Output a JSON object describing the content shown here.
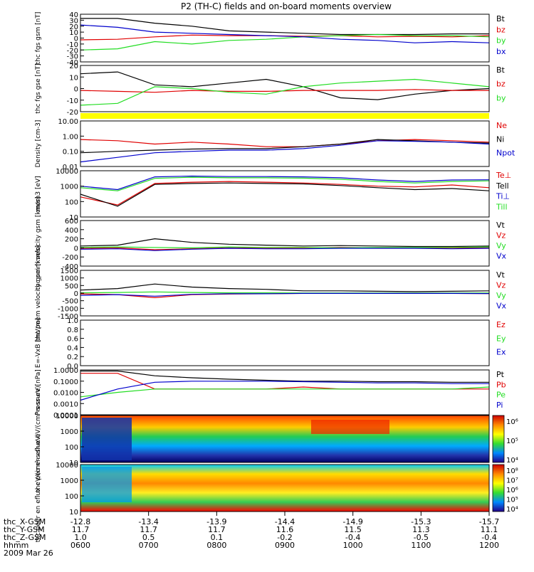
{
  "title": "P2 (TH-C) fields and on-board moments overview",
  "colors": {
    "black": "#000000",
    "red": "#e00000",
    "green": "#22dd22",
    "blue": "#0000cc",
    "yellow": "#ffff00"
  },
  "chart_data": [
    {
      "type": "line",
      "ylabel": "thc fgs gsm [nT]",
      "ylim": [
        -40,
        40
      ],
      "ticks": [
        "40",
        "30",
        "20",
        "10",
        "0",
        "-10",
        "-20",
        "-30",
        "-40"
      ],
      "series": [
        {
          "name": "Bt",
          "color": "black",
          "values": [
            33,
            33,
            25,
            20,
            12,
            10,
            8,
            6,
            6,
            6,
            7,
            7
          ]
        },
        {
          "name": "bz",
          "color": "red",
          "values": [
            -3,
            -2,
            2,
            5,
            4,
            4,
            3,
            4,
            2,
            3,
            2,
            4
          ]
        },
        {
          "name": "by",
          "color": "green",
          "values": [
            -20,
            -18,
            -6,
            -10,
            -4,
            -2,
            2,
            4,
            6,
            4,
            4,
            2
          ]
        },
        {
          "name": "bx",
          "color": "blue",
          "values": [
            22,
            18,
            10,
            8,
            6,
            4,
            2,
            -2,
            -4,
            -8,
            -6,
            -8
          ]
        }
      ]
    },
    {
      "type": "line",
      "ylabel": "thc fgs gse [nT]",
      "ylim": [
        -25,
        25
      ],
      "ticks": [
        "20",
        "10",
        "0",
        "-10",
        "-20"
      ],
      "series": [
        {
          "name": "Bt",
          "color": "black",
          "values": [
            16,
            18,
            4,
            2,
            6,
            10,
            2,
            -10,
            -12,
            -6,
            -2,
            0
          ]
        },
        {
          "name": "bz",
          "color": "red",
          "values": [
            -2,
            -3,
            -4,
            -2,
            -3,
            -3,
            -2,
            -2,
            -2,
            -1,
            -2,
            -2
          ]
        },
        {
          "name": "by",
          "color": "green",
          "values": [
            -18,
            -16,
            2,
            0,
            -4,
            -6,
            2,
            6,
            8,
            10,
            6,
            2
          ]
        }
      ]
    },
    {
      "type": "line",
      "ylabel": "Density [cm-3]",
      "ylim": [
        0.01,
        10
      ],
      "log": true,
      "ticks": [
        "10.00",
        "1.00",
        "0.10",
        "0.01"
      ],
      "series": [
        {
          "name": "Ne",
          "color": "red",
          "values": [
            0.6,
            0.5,
            0.3,
            0.4,
            0.3,
            0.2,
            0.2,
            0.3,
            0.5,
            0.6,
            0.5,
            0.4
          ]
        },
        {
          "name": "Ni",
          "color": "black",
          "values": [
            0.08,
            0.1,
            0.12,
            0.14,
            0.15,
            0.15,
            0.2,
            0.3,
            0.6,
            0.5,
            0.4,
            0.35
          ]
        },
        {
          "name": "Npot",
          "color": "blue",
          "values": [
            0.02,
            0.04,
            0.08,
            0.1,
            0.12,
            0.12,
            0.15,
            0.25,
            0.5,
            0.45,
            0.4,
            0.3
          ]
        }
      ]
    },
    {
      "type": "line",
      "ylabel": "mom3 [eV]",
      "ylim": [
        10,
        10000
      ],
      "log": true,
      "ticks": [
        "10000",
        "1000",
        "100",
        "10"
      ],
      "series": [
        {
          "name": "Te⊥",
          "color": "red",
          "values": [
            200,
            60,
            1500,
            1800,
            2000,
            1800,
            1600,
            1300,
            1000,
            900,
            1200,
            800
          ]
        },
        {
          "name": "Tell",
          "color": "black",
          "values": [
            300,
            50,
            1300,
            1500,
            1600,
            1500,
            1400,
            1100,
            800,
            600,
            700,
            500
          ]
        },
        {
          "name": "Ti⊥",
          "color": "blue",
          "values": [
            1000,
            600,
            4000,
            4500,
            4200,
            4200,
            4000,
            3500,
            2500,
            2000,
            2500,
            2600
          ]
        },
        {
          "name": "Till",
          "color": "green",
          "values": [
            800,
            500,
            3200,
            3800,
            3500,
            3500,
            3300,
            2800,
            2000,
            1600,
            2000,
            2200
          ]
        }
      ]
    },
    {
      "type": "line",
      "ylabel": "thc peim velocity gsm [km/s]",
      "ylim": [
        -400,
        600
      ],
      "ticks": [
        "600",
        "400",
        "200",
        "0",
        "-200",
        "-400"
      ],
      "series": [
        {
          "name": "Vt",
          "color": "black",
          "values": [
            40,
            60,
            200,
            120,
            80,
            60,
            40,
            50,
            40,
            30,
            30,
            40
          ]
        },
        {
          "name": "Vz",
          "color": "red",
          "values": [
            -10,
            0,
            -40,
            -20,
            0,
            -10,
            0,
            10,
            0,
            0,
            0,
            0
          ]
        },
        {
          "name": "Vy",
          "color": "green",
          "values": [
            10,
            20,
            10,
            0,
            20,
            10,
            10,
            0,
            10,
            10,
            10,
            20
          ]
        },
        {
          "name": "Vx",
          "color": "blue",
          "values": [
            -30,
            -20,
            -60,
            -30,
            -10,
            -20,
            -20,
            -10,
            -10,
            -10,
            -20,
            -10
          ]
        }
      ]
    },
    {
      "type": "line",
      "ylabel": "thc peem velocity gsm [km/s]",
      "ylim": [
        -1500,
        1500
      ],
      "ticks": [
        "1500",
        "1000",
        "500",
        "0",
        "-500",
        "-1000",
        "-1500"
      ],
      "series": [
        {
          "name": "Vt",
          "color": "black",
          "values": [
            200,
            300,
            600,
            400,
            300,
            250,
            150,
            150,
            120,
            100,
            120,
            150
          ]
        },
        {
          "name": "Vz",
          "color": "red",
          "values": [
            -50,
            -100,
            -300,
            -100,
            -60,
            -40,
            -20,
            -20,
            -20,
            -10,
            -20,
            -30
          ]
        },
        {
          "name": "Vy",
          "color": "green",
          "values": [
            20,
            40,
            80,
            40,
            20,
            20,
            10,
            10,
            10,
            10,
            10,
            10
          ]
        },
        {
          "name": "Vx",
          "color": "blue",
          "values": [
            -150,
            -100,
            -200,
            -80,
            -40,
            -40,
            -20,
            -20,
            -20,
            -20,
            -20,
            -30
          ]
        }
      ]
    },
    {
      "type": "line",
      "ylabel": "E=-VxB [mV/m]",
      "ylim": [
        0,
        1
      ],
      "ticks": [
        "1.0",
        "0.8",
        "0.6",
        "0.4",
        "0.2",
        "0.0"
      ],
      "series": [
        {
          "name": "Ez",
          "color": "red",
          "values": []
        },
        {
          "name": "Ey",
          "color": "green",
          "values": []
        },
        {
          "name": "Ex",
          "color": "blue",
          "values": []
        }
      ]
    },
    {
      "type": "line",
      "ylabel": "Pressure [nPa]",
      "ylim": [
        0.0001,
        1
      ],
      "log": true,
      "ticks": [
        "1.0000",
        "0.1000",
        "0.0100",
        "0.0010",
        "0.0001"
      ],
      "series": [
        {
          "name": "Pt",
          "color": "black",
          "values": [
            0.8,
            0.8,
            0.3,
            0.2,
            0.15,
            0.12,
            0.1,
            0.1,
            0.09,
            0.09,
            0.08,
            0.08
          ]
        },
        {
          "name": "Pb",
          "color": "red",
          "values": [
            0.5,
            0.5,
            0.02,
            0.02,
            0.02,
            0.02,
            0.03,
            0.02,
            0.02,
            0.02,
            0.02,
            0.02
          ]
        },
        {
          "name": "Pe",
          "color": "green",
          "values": [
            0.004,
            0.01,
            0.02,
            0.02,
            0.02,
            0.02,
            0.02,
            0.02,
            0.02,
            0.02,
            0.02,
            0.03
          ]
        },
        {
          "name": "Pi",
          "color": "blue",
          "values": [
            0.002,
            0.02,
            0.08,
            0.1,
            0.1,
            0.1,
            0.09,
            0.08,
            0.07,
            0.07,
            0.06,
            0.06
          ]
        }
      ]
    },
    {
      "type": "heatmap",
      "ylabel": "thc peir en eflux eV/(cm²-s-sr-eV)",
      "ylim": [
        10,
        10000
      ],
      "log": true,
      "ticks": [
        "10000",
        "1000",
        "100",
        "10"
      ],
      "colorbar_ticks": [
        "10⁶",
        "10⁵",
        "10⁴"
      ]
    },
    {
      "type": "heatmap",
      "ylabel": "thc peer en eflux eV/(cm²-s-sr-eV)",
      "ylim": [
        10,
        10000
      ],
      "log": true,
      "ticks": [
        "10000",
        "1000",
        "100",
        "10"
      ],
      "colorbar_ticks": [
        "10⁸",
        "10⁷",
        "10⁶",
        "10⁵",
        "10⁴"
      ]
    }
  ],
  "x_axis": {
    "row_labels": [
      "thc_X-GSM",
      "thc_Y-GSM",
      "thc_Z-GSM",
      "hhmm",
      "2009 Mar 26"
    ],
    "columns": [
      {
        "x": "-12.8",
        "y": "11.7",
        "z": "1.0",
        "t": "0600"
      },
      {
        "x": "-13.4",
        "y": "11.7",
        "z": "0.5",
        "t": "0700"
      },
      {
        "x": "-13.9",
        "y": "11.7",
        "z": "0.1",
        "t": "0800"
      },
      {
        "x": "-14.4",
        "y": "11.6",
        "z": "-0.2",
        "t": "0900"
      },
      {
        "x": "-14.9",
        "y": "11.5",
        "z": "-0.4",
        "t": "1000"
      },
      {
        "x": "-15.3",
        "y": "11.3",
        "z": "-0.5",
        "t": "1100"
      },
      {
        "x": "-15.7",
        "y": "11.1",
        "z": "-0.4",
        "t": "1200"
      }
    ]
  }
}
